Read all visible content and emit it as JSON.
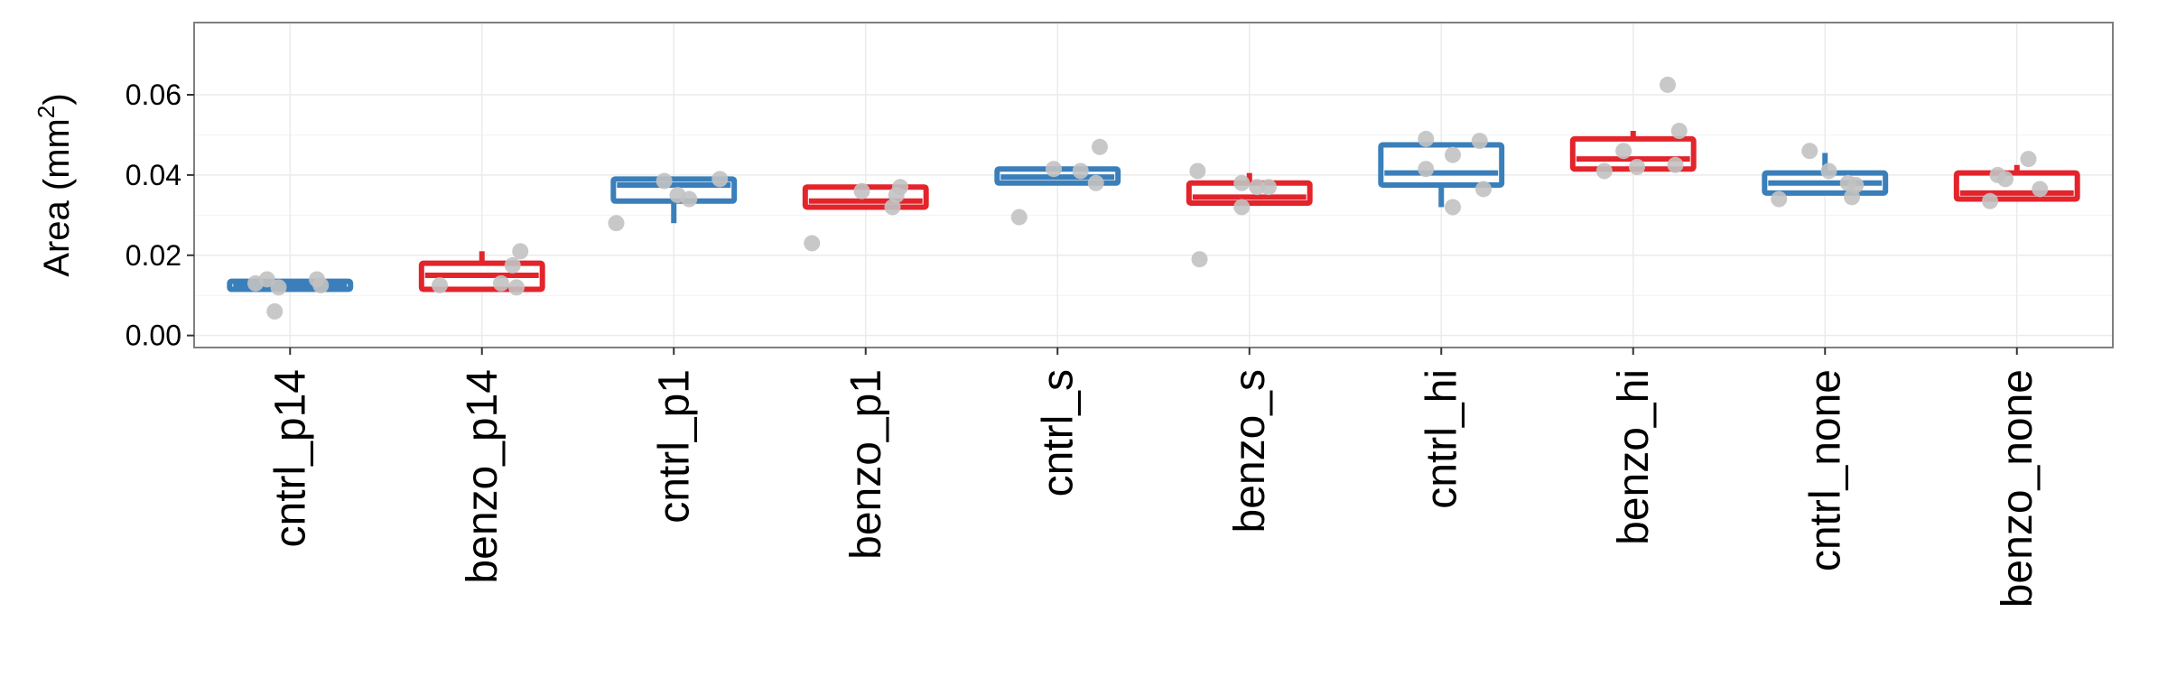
{
  "chart_data": {
    "type": "boxplot",
    "ylabel": "Area (mm²)",
    "ylabel_parts": {
      "text": "Area (mm",
      "superscript": "2",
      "suffix": ")"
    },
    "xlabel": "",
    "ylim": [
      -0.003,
      0.078
    ],
    "yticks": [
      0.0,
      0.02,
      0.04,
      0.06
    ],
    "ytick_labels": [
      "0.00",
      "0.02",
      "0.04",
      "0.06"
    ],
    "grid": true,
    "colors": {
      "cntrl": "#3a7fba",
      "benzo": "#e3242b",
      "points": "#c2c2c2",
      "panel_border": "#7f7f7f",
      "grid": "#ebebeb"
    },
    "categories": [
      "cntrl_p14",
      "benzo_p14",
      "cntrl_p1",
      "benzo_p1",
      "cntrl_s",
      "benzo_s",
      "cntrl_hi",
      "benzo_hi",
      "cntrl_none",
      "benzo_none"
    ],
    "boxes": [
      {
        "group": "cntrl",
        "whisker_low": 0.0115,
        "q1": 0.0115,
        "median": 0.0125,
        "q3": 0.0135,
        "whisker_high": 0.014
      },
      {
        "group": "benzo",
        "whisker_low": 0.0115,
        "q1": 0.0115,
        "median": 0.015,
        "q3": 0.018,
        "whisker_high": 0.021
      },
      {
        "group": "cntrl",
        "whisker_low": 0.028,
        "q1": 0.0335,
        "median": 0.0375,
        "q3": 0.039,
        "whisker_high": 0.039
      },
      {
        "group": "benzo",
        "whisker_low": 0.032,
        "q1": 0.032,
        "median": 0.0335,
        "q3": 0.037,
        "whisker_high": 0.037
      },
      {
        "group": "cntrl",
        "whisker_low": 0.038,
        "q1": 0.038,
        "median": 0.0395,
        "q3": 0.0415,
        "whisker_high": 0.0415
      },
      {
        "group": "benzo",
        "whisker_low": 0.033,
        "q1": 0.033,
        "median": 0.0345,
        "q3": 0.038,
        "whisker_high": 0.0405
      },
      {
        "group": "cntrl",
        "whisker_low": 0.032,
        "q1": 0.0375,
        "median": 0.0405,
        "q3": 0.0475,
        "whisker_high": 0.048
      },
      {
        "group": "benzo",
        "whisker_low": 0.0415,
        "q1": 0.0415,
        "median": 0.044,
        "q3": 0.049,
        "whisker_high": 0.051
      },
      {
        "group": "cntrl",
        "whisker_low": 0.0355,
        "q1": 0.0355,
        "median": 0.038,
        "q3": 0.0405,
        "whisker_high": 0.0455
      },
      {
        "group": "benzo",
        "whisker_low": 0.034,
        "q1": 0.034,
        "median": 0.0355,
        "q3": 0.0405,
        "whisker_high": 0.0425
      }
    ],
    "points": [
      [
        0.013,
        0.014,
        0.012,
        0.006,
        0.014,
        0.0125
      ],
      [
        0.0125,
        0.013,
        0.012,
        0.0175,
        0.021
      ],
      [
        0.028,
        0.0385,
        0.035,
        0.034,
        0.039
      ],
      [
        0.023,
        0.036,
        0.032,
        0.035,
        0.037
      ],
      [
        0.0415,
        0.0295,
        0.041,
        0.038,
        0.047
      ],
      [
        0.019,
        0.041,
        0.038,
        0.032,
        0.037,
        0.037
      ],
      [
        0.049,
        0.0415,
        0.045,
        0.032,
        0.0485,
        0.0365
      ],
      [
        0.041,
        0.046,
        0.042,
        0.0625,
        0.0425,
        0.051
      ],
      [
        0.034,
        0.046,
        0.041,
        0.038,
        0.0345,
        0.0375
      ],
      [
        0.0335,
        0.04,
        0.039,
        0.044,
        0.0365
      ]
    ],
    "point_offsets": [
      [
        -0.18,
        -0.12,
        -0.06,
        -0.08,
        0.14,
        0.16
      ],
      [
        -0.22,
        0.1,
        0.18,
        0.16,
        0.2
      ],
      [
        -0.3,
        -0.05,
        0.02,
        0.08,
        0.24
      ],
      [
        -0.28,
        -0.02,
        0.14,
        0.16,
        0.18
      ],
      [
        -0.02,
        -0.2,
        0.12,
        0.2,
        0.22
      ],
      [
        -0.26,
        -0.27,
        -0.04,
        -0.04,
        0.04,
        0.1
      ],
      [
        -0.08,
        -0.08,
        0.06,
        0.06,
        0.2,
        0.22
      ],
      [
        -0.15,
        -0.05,
        0.02,
        0.18,
        0.22,
        0.24
      ],
      [
        -0.24,
        -0.08,
        0.02,
        0.12,
        0.14,
        0.16
      ],
      [
        -0.14,
        -0.1,
        -0.06,
        0.06,
        0.12
      ]
    ]
  }
}
